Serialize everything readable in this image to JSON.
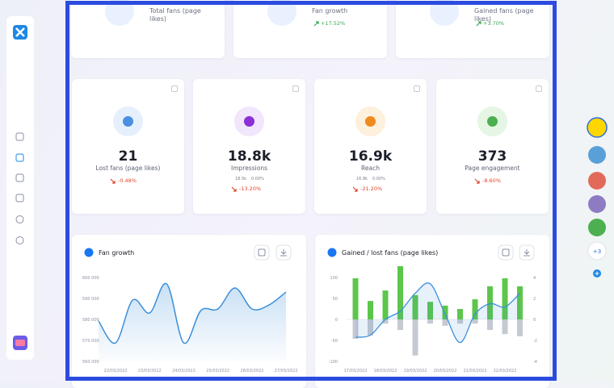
{
  "top_cards": [
    {
      "title": "Total fans (page likes)"
    },
    {
      "title": "Fan growth",
      "change": "+17.52%"
    },
    {
      "title": "Gained fans (page likes)",
      "change": "+3.70%"
    }
  ],
  "stat_cards": [
    {
      "value": "21",
      "label": "Lost fans (page likes)",
      "change": "-0.48%"
    },
    {
      "value": "18.8k",
      "label": "Impressions",
      "sub": [
        "18.5k",
        "0.00%"
      ],
      "change": "-13.20%"
    },
    {
      "value": "16.9k",
      "label": "Reach",
      "sub": [
        "16.8k",
        "0.00%"
      ],
      "change": "-21.20%"
    },
    {
      "value": "373",
      "label": "Page engagement",
      "change": "-8.60%"
    }
  ],
  "avatars_more": "+3",
  "chart_data": [
    {
      "type": "line",
      "title": "Fan growth",
      "categories": [
        null,
        "22/03/2022",
        null,
        "23/03/2022",
        null,
        "24/03/2022",
        null,
        "25/03/2022",
        null,
        "26/03/2022",
        null,
        "27/03/2022"
      ],
      "series": [
        {
          "color": "#3b8fd9",
          "values": [
            579200,
            568800,
            589200,
            583100,
            596900,
            568800,
            584200,
            585000,
            595000,
            585000,
            586900,
            593100
          ]
        }
      ],
      "ylim": [
        560000,
        600000
      ],
      "yticks": [
        {
          "value": 600000,
          "label": "600 000"
        },
        {
          "value": 590000,
          "label": "590 000"
        },
        {
          "value": 580000,
          "label": "580 000"
        },
        {
          "value": 570000,
          "label": "570 000"
        },
        {
          "value": 560000,
          "label": "560 000"
        }
      ]
    },
    {
      "type": "bar",
      "title": "Gained / lost fans (page likes)",
      "categories": [
        "17/03/2022",
        null,
        "18/03/2022",
        null,
        "19/03/2022",
        null,
        "20/03/2022",
        null,
        "21/03/2022",
        null,
        "22/03/2022",
        null
      ],
      "series": [
        {
          "color": "#5cc64b",
          "values": [
            98,
            44,
            69,
            127,
            58,
            42,
            33,
            25,
            48,
            79,
            98,
            79
          ]
        },
        {
          "color": "#c5c9d1",
          "values": [
            -46,
            -38,
            -10,
            -25,
            -86,
            -10,
            -15,
            -10,
            -10,
            -25,
            -35,
            -40
          ]
        },
        {
          "color": "#3b8fd9",
          "axis": "y2",
          "type": "line",
          "values": [
            -1.7,
            -1.5,
            0,
            0.8,
            2.5,
            3.4,
            0.5,
            -2.2,
            0.5,
            1.5,
            1.2,
            2.5
          ]
        }
      ],
      "ylim": [
        -125,
        125
      ],
      "yticks": [
        100,
        50,
        0,
        -50,
        -100
      ],
      "y2lim": [
        -5,
        5
      ],
      "y2ticks": [
        4,
        2,
        0,
        -2,
        -4
      ]
    }
  ]
}
